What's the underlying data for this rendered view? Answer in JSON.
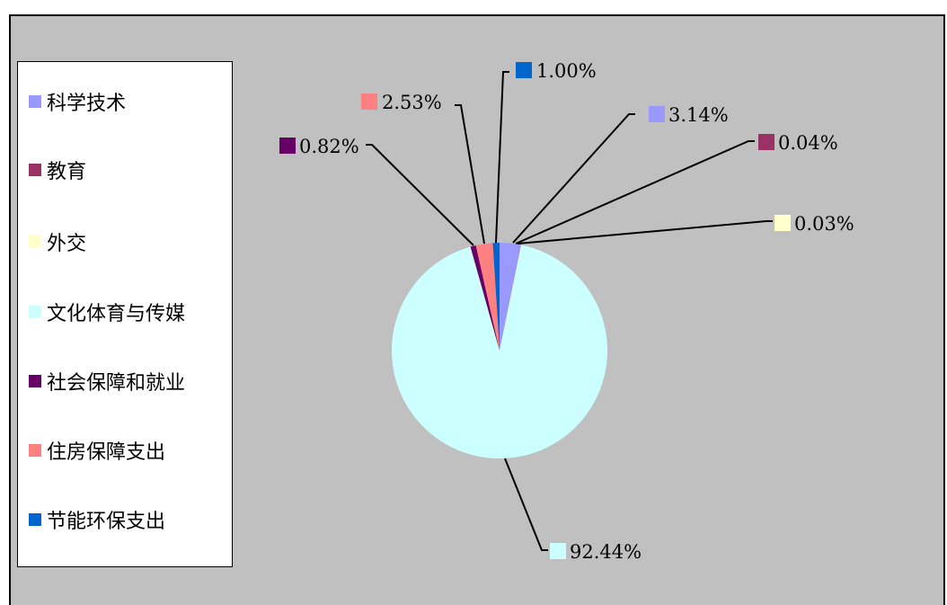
{
  "chart_data": {
    "type": "pie",
    "categories": [
      "科学技术",
      "教育",
      "外交",
      "文化体育与传媒",
      "社会保障和就业",
      "住房保障支出",
      "节能环保支出"
    ],
    "values": [
      3.14,
      0.04,
      0.03,
      92.44,
      0.82,
      2.53,
      1.0
    ],
    "data_labels": [
      "3.14%",
      "0.04%",
      "0.03%",
      "92.44%",
      "0.82%",
      "2.53%",
      "1.00%"
    ],
    "colors": [
      "#9999ff",
      "#993366",
      "#ffffcc",
      "#ccffff",
      "#660066",
      "#ff8080",
      "#0066cc"
    ],
    "legend_position": "left",
    "background": "#c0c0c0"
  }
}
